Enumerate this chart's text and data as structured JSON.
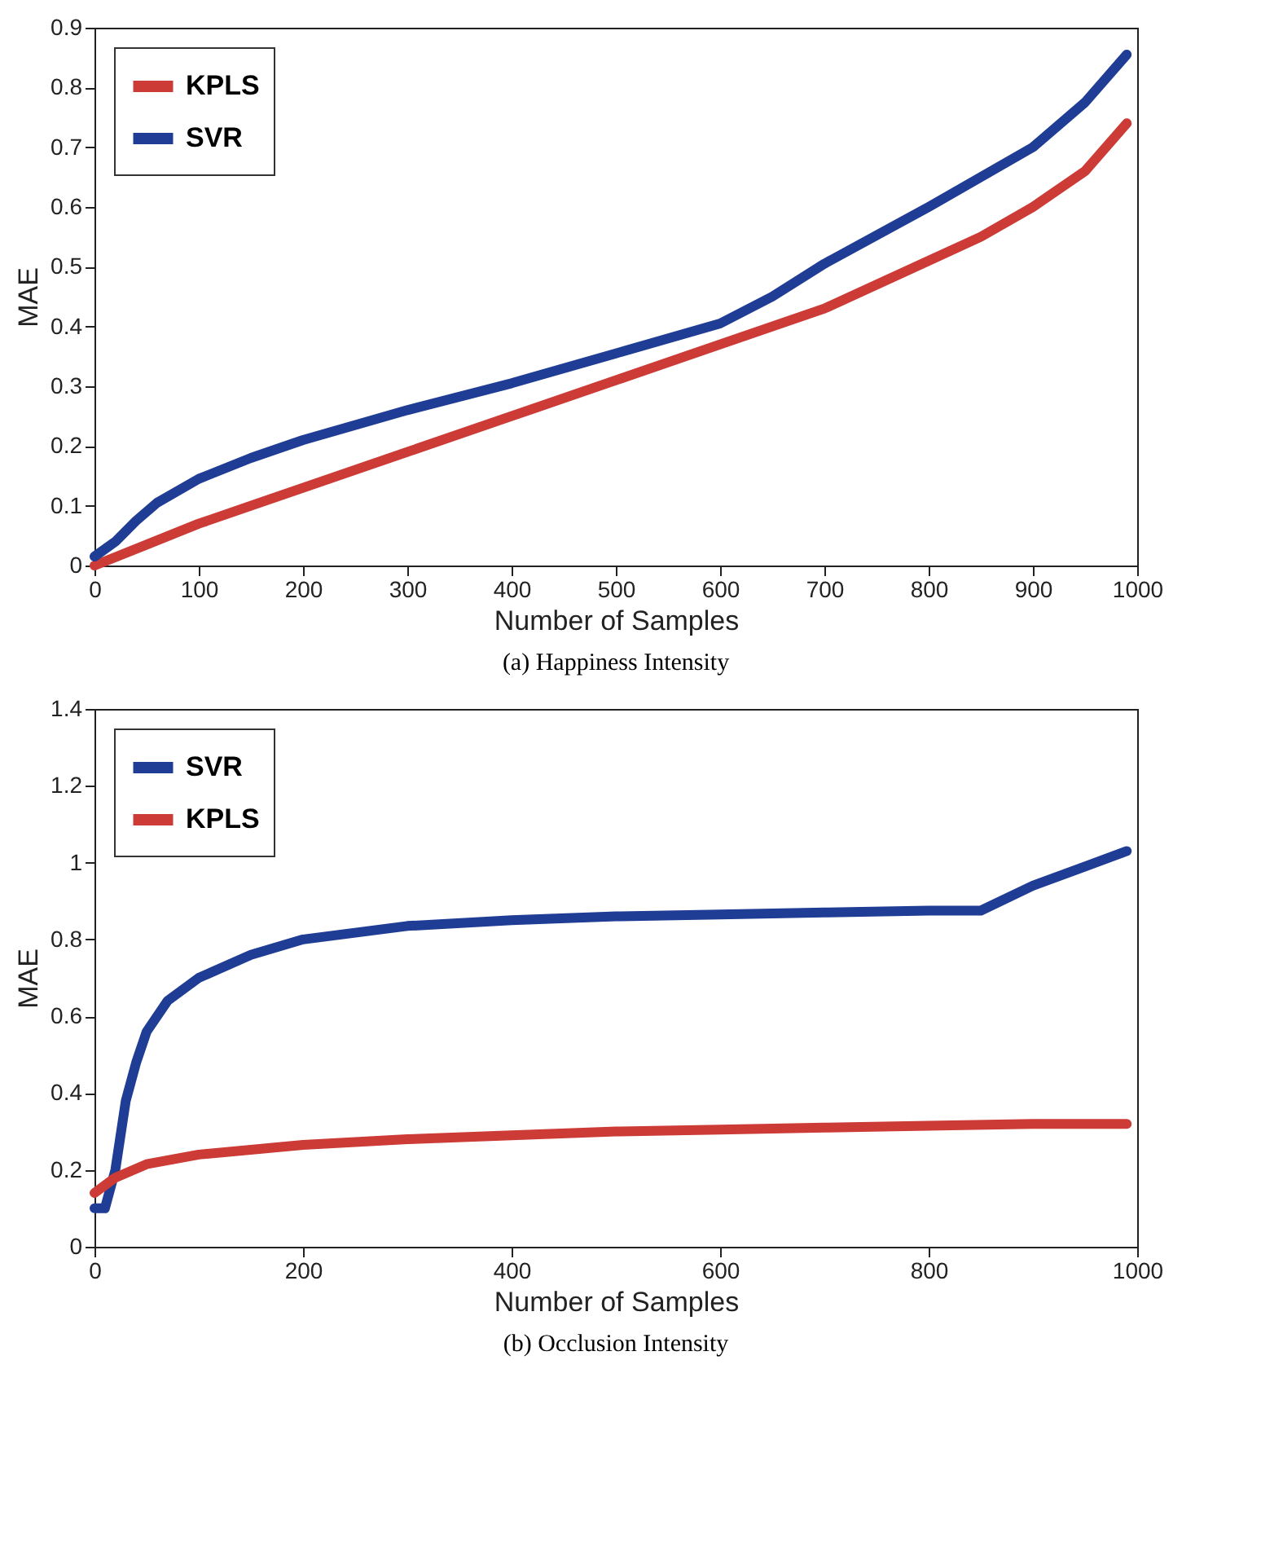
{
  "chart_data": [
    {
      "type": "line",
      "xlabel": "Number of Samples",
      "ylabel": "MAE",
      "annotations": [
        "(a) Happiness Intensity"
      ],
      "xlim": [
        0,
        1000
      ],
      "xticks": [
        0,
        100,
        200,
        300,
        400,
        500,
        600,
        700,
        800,
        900,
        1000
      ],
      "ylim": [
        0,
        0.9
      ],
      "yticks": [
        0,
        0.1,
        0.2,
        0.3,
        0.4,
        0.5,
        0.6,
        0.7,
        0.8,
        0.9
      ],
      "grid": false,
      "legend": "top left",
      "line_style": "solid",
      "series": [
        {
          "name": "KPLS",
          "color": "#cc3b36",
          "x": [
            0,
            50,
            100,
            150,
            200,
            300,
            400,
            500,
            600,
            700,
            800,
            850,
            900,
            950,
            990
          ],
          "values": [
            0,
            0.035,
            0.07,
            0.1,
            0.13,
            0.19,
            0.25,
            0.31,
            0.37,
            0.43,
            0.51,
            0.55,
            0.6,
            0.66,
            0.74
          ]
        },
        {
          "name": "SVR",
          "color": "#1f3d94",
          "x": [
            0,
            20,
            40,
            60,
            100,
            150,
            200,
            300,
            400,
            500,
            600,
            650,
            700,
            800,
            900,
            950,
            990
          ],
          "values": [
            0.015,
            0.04,
            0.075,
            0.105,
            0.145,
            0.18,
            0.21,
            0.26,
            0.305,
            0.355,
            0.405,
            0.45,
            0.505,
            0.6,
            0.7,
            0.775,
            0.855
          ]
        }
      ]
    },
    {
      "type": "line",
      "xlabel": "Number of Samples",
      "ylabel": "MAE",
      "annotations": [
        "(b) Occlusion Intensity"
      ],
      "xlim": [
        0,
        1000
      ],
      "xticks": [
        0,
        200,
        400,
        600,
        800,
        1000
      ],
      "ylim": [
        0,
        1.4
      ],
      "yticks": [
        0,
        0.2,
        0.4,
        0.6,
        0.8,
        1,
        1.2,
        1.4
      ],
      "grid": false,
      "legend": "top left",
      "line_style": "solid",
      "series": [
        {
          "name": "SVR",
          "color": "#1f3d94",
          "x": [
            0,
            10,
            20,
            30,
            40,
            50,
            70,
            100,
            150,
            200,
            300,
            400,
            500,
            600,
            700,
            800,
            850,
            900,
            950,
            990
          ],
          "values": [
            0.1,
            0.1,
            0.2,
            0.38,
            0.48,
            0.56,
            0.64,
            0.7,
            0.76,
            0.8,
            0.835,
            0.85,
            0.86,
            0.865,
            0.87,
            0.875,
            0.875,
            0.94,
            0.99,
            1.03
          ]
        },
        {
          "name": "KPLS",
          "color": "#cc3b36",
          "x": [
            0,
            20,
            50,
            100,
            200,
            300,
            400,
            500,
            600,
            700,
            800,
            900,
            990
          ],
          "values": [
            0.14,
            0.18,
            0.215,
            0.24,
            0.265,
            0.28,
            0.29,
            0.3,
            0.305,
            0.31,
            0.315,
            0.32,
            0.32
          ]
        }
      ]
    }
  ]
}
